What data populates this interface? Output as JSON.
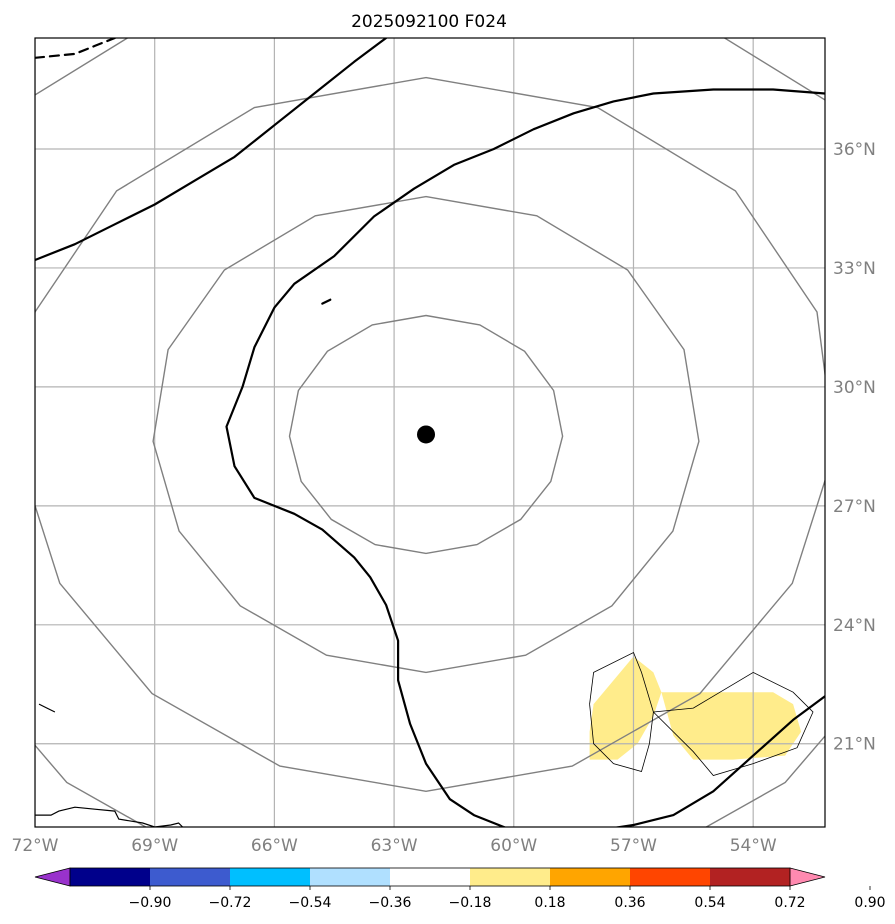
{
  "chart_data": {
    "type": "map",
    "title": "2025092100 F024",
    "projection": "PlateCarree",
    "lon_range": [
      -72.0,
      -52.2
    ],
    "lat_range": [
      18.9,
      38.8
    ],
    "xticks": [
      {
        "value": -72,
        "label": "72°W"
      },
      {
        "value": -69,
        "label": "69°W"
      },
      {
        "value": -66,
        "label": "66°W"
      },
      {
        "value": -63,
        "label": "63°W"
      },
      {
        "value": -60,
        "label": "60°W"
      },
      {
        "value": -57,
        "label": "57°W"
      },
      {
        "value": -54,
        "label": "54°W"
      }
    ],
    "yticks": [
      {
        "value": 21,
        "label": "21°N"
      },
      {
        "value": 24,
        "label": "24°N"
      },
      {
        "value": 27,
        "label": "27°N"
      },
      {
        "value": 30,
        "label": "30°N"
      },
      {
        "value": 33,
        "label": "33°N"
      },
      {
        "value": 36,
        "label": "36°N"
      }
    ],
    "grid": true,
    "storm_center": {
      "lon": -62.2,
      "lat": 28.8
    },
    "range_rings_deg": [
      3,
      6,
      9,
      12
    ],
    "contour_lines": [
      {
        "name": "solid-contour-main",
        "points": [
          [
            -52.2,
            22.2
          ],
          [
            -53.0,
            21.6
          ],
          [
            -54.0,
            20.7
          ],
          [
            -55.0,
            19.8
          ],
          [
            -56.0,
            19.2
          ],
          [
            -57.0,
            18.95
          ],
          [
            -58.0,
            18.8
          ],
          [
            -59.0,
            18.7
          ],
          [
            -60.0,
            18.8
          ],
          [
            -61.0,
            19.2
          ],
          [
            -61.6,
            19.6
          ],
          [
            -62.2,
            20.5
          ],
          [
            -62.6,
            21.5
          ],
          [
            -62.9,
            22.6
          ],
          [
            -62.9,
            23.6
          ],
          [
            -63.2,
            24.5
          ],
          [
            -63.6,
            25.2
          ],
          [
            -64.0,
            25.7
          ],
          [
            -64.8,
            26.4
          ],
          [
            -65.5,
            26.8
          ],
          [
            -66.5,
            27.2
          ],
          [
            -67.0,
            28.0
          ],
          [
            -67.2,
            29.0
          ],
          [
            -66.8,
            30.0
          ],
          [
            -66.5,
            31.0
          ],
          [
            -66.0,
            32.0
          ],
          [
            -65.5,
            32.6
          ],
          [
            -64.5,
            33.3
          ],
          [
            -63.5,
            34.3
          ],
          [
            -62.5,
            35.0
          ],
          [
            -61.5,
            35.6
          ],
          [
            -60.5,
            36.0
          ],
          [
            -59.5,
            36.5
          ],
          [
            -58.5,
            36.9
          ],
          [
            -57.5,
            37.2
          ],
          [
            -56.5,
            37.4
          ],
          [
            -55.0,
            37.5
          ],
          [
            -53.5,
            37.5
          ],
          [
            -52.2,
            37.4
          ]
        ]
      },
      {
        "name": "solid-contour-northwest",
        "points": [
          [
            -72.0,
            33.2
          ],
          [
            -71.0,
            33.6
          ],
          [
            -70.0,
            34.1
          ],
          [
            -69.0,
            34.6
          ],
          [
            -68.0,
            35.2
          ],
          [
            -67.0,
            35.8
          ],
          [
            -66.5,
            36.2
          ],
          [
            -66.0,
            36.6
          ],
          [
            -65.0,
            37.4
          ],
          [
            -64.0,
            38.2
          ],
          [
            -63.2,
            38.8
          ]
        ]
      },
      {
        "name": "dashed-contour-northwest",
        "dashed": true,
        "points": [
          [
            -72.0,
            38.3
          ],
          [
            -71.0,
            38.4
          ],
          [
            -70.5,
            38.6
          ],
          [
            -70.0,
            38.8
          ]
        ]
      },
      {
        "name": "tiny-contour-fragment",
        "points": [
          [
            -64.8,
            32.1
          ],
          [
            -64.6,
            32.2
          ]
        ]
      }
    ],
    "filled_regions": [
      {
        "name": "anomaly-shade-west",
        "bin": "0.18–0.36",
        "color": "#ffec8b",
        "points": [
          [
            -58.0,
            22.0
          ],
          [
            -57.0,
            23.2
          ],
          [
            -56.5,
            22.8
          ],
          [
            -56.3,
            22.3
          ],
          [
            -56.5,
            21.7
          ],
          [
            -56.9,
            21.0
          ],
          [
            -57.4,
            20.6
          ],
          [
            -58.1,
            20.6
          ],
          [
            -58.1,
            21.3
          ]
        ]
      },
      {
        "name": "anomaly-shade-east",
        "bin": "0.18–0.36",
        "color": "#ffec8b",
        "points": [
          [
            -56.3,
            22.3
          ],
          [
            -55.0,
            22.3
          ],
          [
            -53.5,
            22.3
          ],
          [
            -53.0,
            22.0
          ],
          [
            -52.8,
            21.3
          ],
          [
            -53.2,
            20.7
          ],
          [
            -54.5,
            20.6
          ],
          [
            -55.5,
            20.6
          ],
          [
            -56.0,
            21.2
          ]
        ]
      }
    ],
    "threshold_outlines": [
      {
        "name": "threshold-outline-west",
        "points": [
          [
            -58.1,
            22.0
          ],
          [
            -58.0,
            21.0
          ],
          [
            -57.5,
            20.5
          ],
          [
            -56.8,
            20.3
          ],
          [
            -56.6,
            21.0
          ],
          [
            -56.5,
            21.8
          ],
          [
            -56.8,
            22.8
          ],
          [
            -57.0,
            23.3
          ],
          [
            -58.0,
            22.8
          ],
          [
            -58.1,
            22.0
          ]
        ]
      },
      {
        "name": "threshold-outline-east",
        "points": [
          [
            -56.5,
            21.8
          ],
          [
            -55.5,
            21.9
          ],
          [
            -55.0,
            22.2
          ],
          [
            -54.0,
            22.8
          ],
          [
            -53.0,
            22.3
          ],
          [
            -52.5,
            21.8
          ],
          [
            -52.9,
            20.9
          ],
          [
            -54.0,
            20.5
          ],
          [
            -55.0,
            20.2
          ],
          [
            -55.5,
            20.8
          ],
          [
            -56.5,
            21.8
          ]
        ]
      }
    ],
    "coastlines": [
      {
        "name": "coastline-hispaniola",
        "points": [
          [
            -72.0,
            19.2
          ],
          [
            -71.6,
            19.2
          ],
          [
            -71.4,
            19.3
          ],
          [
            -71.0,
            19.4
          ],
          [
            -70.5,
            19.35
          ],
          [
            -70.0,
            19.3
          ],
          [
            -69.9,
            19.1
          ],
          [
            -69.3,
            19.0
          ],
          [
            -69.0,
            18.9
          ],
          [
            -68.6,
            18.95
          ],
          [
            -68.4,
            19.0
          ],
          [
            -68.3,
            18.9
          ],
          [
            -68.0,
            18.6
          ]
        ]
      },
      {
        "name": "coastline-islet",
        "points": [
          [
            -71.9,
            22.0
          ],
          [
            -71.7,
            21.9
          ],
          [
            -71.5,
            21.8
          ]
        ]
      }
    ],
    "colorbar": {
      "bins": [
        {
          "color": "#9932cc"
        },
        {
          "color": "#00008b"
        },
        {
          "color": "#3d5bcf"
        },
        {
          "color": "#00bfff"
        },
        {
          "color": "#b0e0ff"
        },
        {
          "color": "#ffffff"
        },
        {
          "color": "#ffec8b"
        },
        {
          "color": "#ffa500"
        },
        {
          "color": "#ff4500"
        },
        {
          "color": "#b22222"
        },
        {
          "color": "#ff8ab0"
        }
      ],
      "ticks": [
        {
          "value": -0.9,
          "label": "−0.90"
        },
        {
          "value": -0.72,
          "label": "−0.72"
        },
        {
          "value": -0.54,
          "label": "−0.54"
        },
        {
          "value": -0.36,
          "label": "−0.36"
        },
        {
          "value": -0.18,
          "label": "−0.18"
        },
        {
          "value": 0.18,
          "label": "0.18"
        },
        {
          "value": 0.36,
          "label": "0.36"
        },
        {
          "value": 0.54,
          "label": "0.54"
        },
        {
          "value": 0.72,
          "label": "0.72"
        },
        {
          "value": 0.9,
          "label": "0.90"
        }
      ],
      "extend": "both"
    }
  }
}
